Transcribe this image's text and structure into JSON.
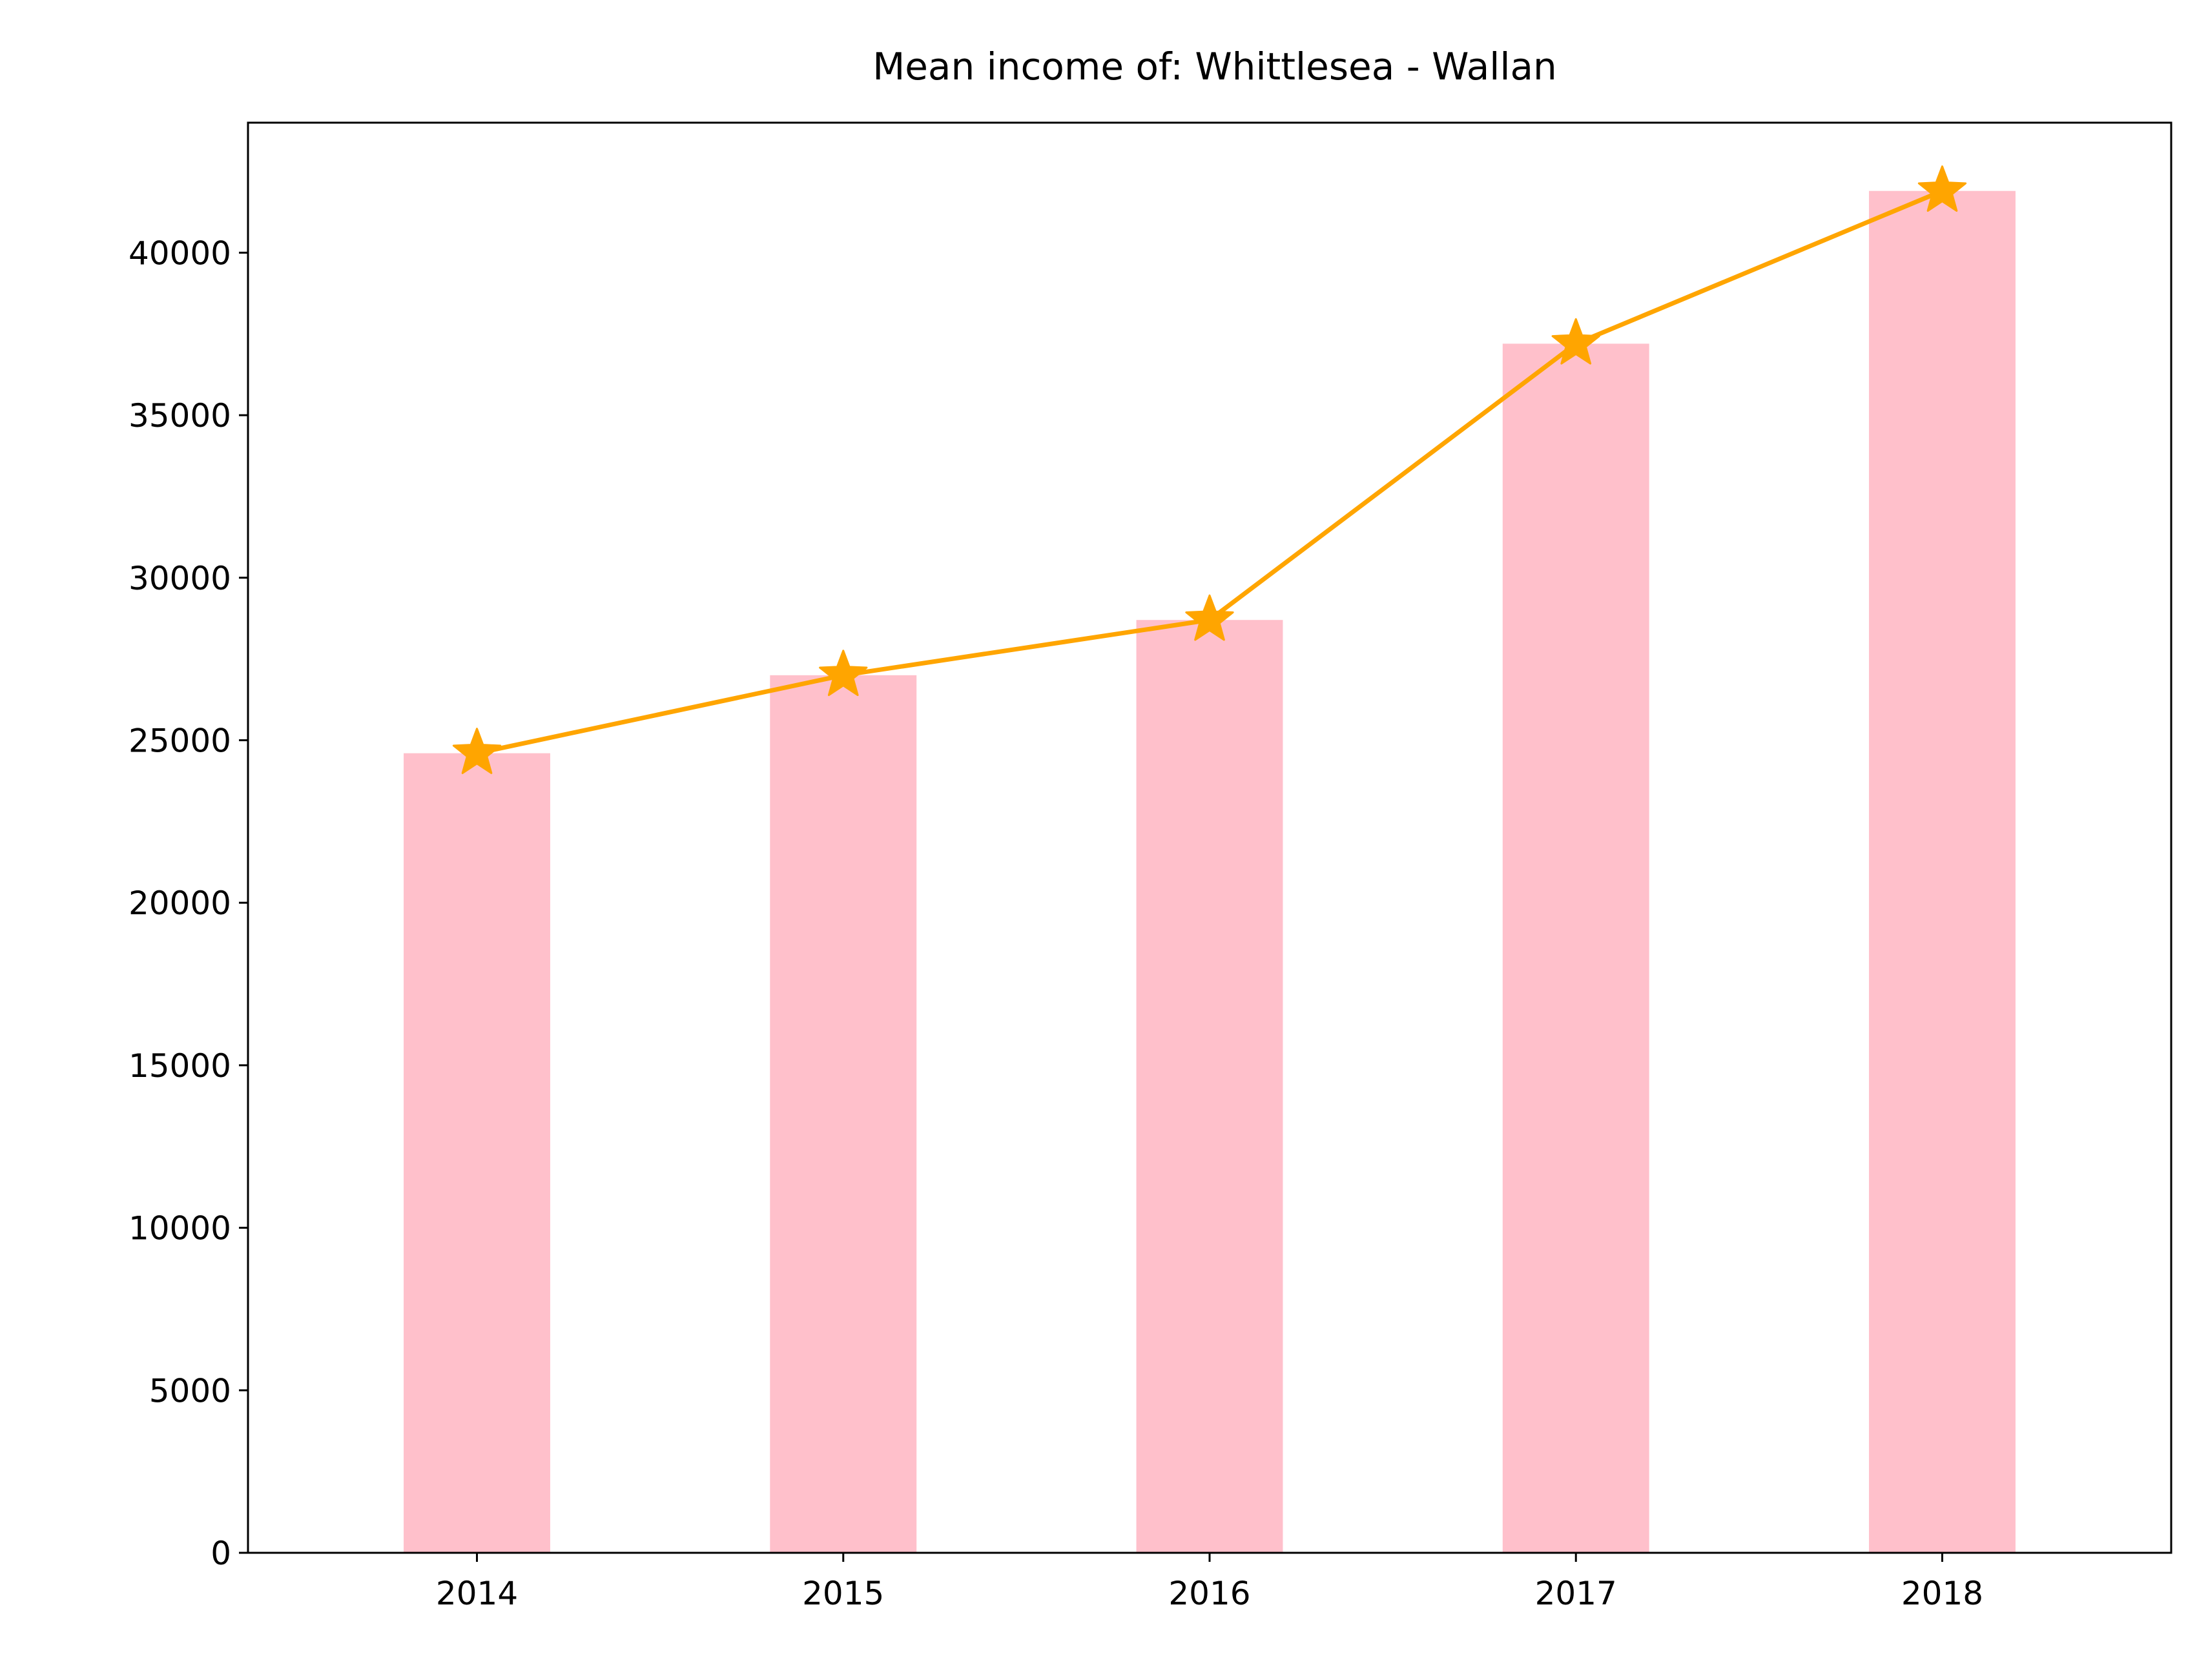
{
  "chart_data": {
    "type": "bar",
    "title": "Mean income of: Whittlesea - Wallan",
    "xlabel": "",
    "ylabel": "",
    "categories": [
      "2014",
      "2015",
      "2016",
      "2017",
      "2018"
    ],
    "series": [
      {
        "type": "bar",
        "values": [
          24600,
          27000,
          28700,
          37200,
          41900
        ],
        "color": "#ffc0cb"
      },
      {
        "type": "line",
        "marker": "star",
        "values": [
          24600,
          27000,
          28700,
          37200,
          41900
        ],
        "color": "#ffa500"
      }
    ],
    "ylim": [
      0,
      44000
    ],
    "yticks": [
      0,
      5000,
      10000,
      15000,
      20000,
      25000,
      30000,
      35000,
      40000
    ],
    "grid": false,
    "legend": false
  }
}
